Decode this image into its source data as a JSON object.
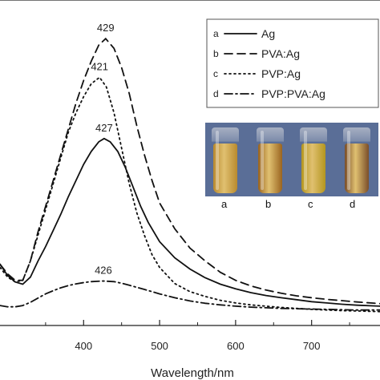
{
  "chart_data": {
    "type": "line",
    "xlabel": "Wavelength/nm",
    "ylabel": "",
    "xlim": [
      290,
      790
    ],
    "ylim": [
      0,
      1
    ],
    "xticks": [
      400,
      500,
      600,
      700
    ],
    "minor_xticks": [
      350,
      450,
      550,
      650,
      750
    ],
    "grid": false,
    "legend_position": "top-right",
    "series": [
      {
        "name": "Ag",
        "letter": "a",
        "style": "solid",
        "x": [
          290,
          300,
          310,
          320,
          330,
          340,
          350,
          360,
          370,
          380,
          390,
          400,
          410,
          420,
          427,
          435,
          445,
          455,
          465,
          475,
          485,
          500,
          520,
          540,
          560,
          580,
          600,
          620,
          640,
          660,
          680,
          700,
          720,
          740,
          760,
          790
        ],
        "y": [
          0.19,
          0.155,
          0.135,
          0.128,
          0.15,
          0.2,
          0.245,
          0.295,
          0.345,
          0.4,
          0.45,
          0.5,
          0.54,
          0.57,
          0.58,
          0.57,
          0.54,
          0.49,
          0.43,
          0.37,
          0.32,
          0.26,
          0.21,
          0.175,
          0.148,
          0.128,
          0.114,
          0.102,
          0.093,
          0.086,
          0.08,
          0.074,
          0.07,
          0.066,
          0.063,
          0.06
        ]
      },
      {
        "name": "PVA:Ag",
        "letter": "b",
        "style": "dashed",
        "x": [
          290,
          300,
          310,
          320,
          330,
          340,
          350,
          360,
          370,
          380,
          390,
          400,
          410,
          420,
          429,
          440,
          450,
          460,
          470,
          480,
          490,
          500,
          520,
          540,
          560,
          580,
          600,
          620,
          640,
          660,
          680,
          700,
          720,
          740,
          760,
          790
        ],
        "y": [
          0.19,
          0.16,
          0.14,
          0.14,
          0.2,
          0.29,
          0.37,
          0.45,
          0.53,
          0.61,
          0.69,
          0.76,
          0.82,
          0.87,
          0.89,
          0.86,
          0.8,
          0.72,
          0.62,
          0.53,
          0.45,
          0.38,
          0.3,
          0.24,
          0.2,
          0.165,
          0.14,
          0.123,
          0.11,
          0.1,
          0.092,
          0.086,
          0.081,
          0.077,
          0.073,
          0.068
        ]
      },
      {
        "name": "PVP:Ag",
        "letter": "c",
        "style": "dotted",
        "x": [
          290,
          300,
          310,
          320,
          330,
          340,
          350,
          360,
          370,
          380,
          390,
          400,
          410,
          421,
          430,
          440,
          450,
          460,
          470,
          480,
          490,
          500,
          520,
          540,
          560,
          580,
          600,
          620,
          640,
          660,
          680,
          700,
          720,
          740,
          760,
          790
        ],
        "y": [
          0.18,
          0.15,
          0.135,
          0.14,
          0.2,
          0.28,
          0.36,
          0.44,
          0.52,
          0.6,
          0.66,
          0.71,
          0.75,
          0.77,
          0.74,
          0.66,
          0.55,
          0.44,
          0.35,
          0.28,
          0.22,
          0.18,
          0.13,
          0.105,
          0.09,
          0.078,
          0.07,
          0.064,
          0.06,
          0.056,
          0.053,
          0.05,
          0.048,
          0.046,
          0.045,
          0.043
        ]
      },
      {
        "name": "PVP:PVA:Ag",
        "letter": "d",
        "style": "dashdot",
        "x": [
          290,
          300,
          310,
          320,
          330,
          340,
          350,
          360,
          370,
          380,
          390,
          400,
          410,
          426,
          440,
          450,
          460,
          480,
          500,
          520,
          540,
          560,
          580,
          600,
          620,
          640,
          660,
          680,
          700,
          720,
          740,
          760,
          790
        ],
        "y": [
          0.062,
          0.058,
          0.058,
          0.062,
          0.072,
          0.085,
          0.098,
          0.108,
          0.117,
          0.124,
          0.129,
          0.133,
          0.136,
          0.138,
          0.136,
          0.131,
          0.125,
          0.112,
          0.098,
          0.086,
          0.076,
          0.069,
          0.064,
          0.06,
          0.057,
          0.055,
          0.053,
          0.052,
          0.051,
          0.05,
          0.049,
          0.048,
          0.048
        ]
      }
    ],
    "peak_annotations": [
      {
        "label": "429",
        "x": 429,
        "y": 0.89
      },
      {
        "label": "421",
        "x": 421,
        "y": 0.77
      },
      {
        "label": "427",
        "x": 427,
        "y": 0.58
      },
      {
        "label": "426",
        "x": 426,
        "y": 0.138
      }
    ]
  },
  "inset_photo": {
    "labels": [
      "a",
      "b",
      "c",
      "d"
    ],
    "background": "#5a6e97",
    "liquid_colors": [
      "#b98a2e",
      "#9a6420",
      "#b4961f",
      "#7a4e2a"
    ]
  }
}
